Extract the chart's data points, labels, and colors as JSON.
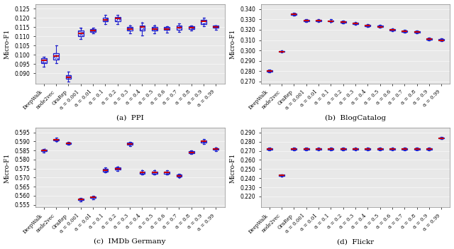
{
  "categories": [
    "DeepWalk",
    "node2vec",
    "GraRep",
    "α = 0.001",
    "α = 0.01",
    "α = 0.1",
    "α = 0.2",
    "α = 0.3",
    "α = 0.4",
    "α = 0.5",
    "α = 0.6",
    "α = 0.7",
    "α = 0.8",
    "α = 0.9",
    "α = 0.99"
  ],
  "ppi": {
    "title": "(a)  PPI",
    "ylabel": "Micro-F1",
    "ylim": [
      0.0845,
      0.1275
    ],
    "yticks": [
      0.09,
      0.095,
      0.1,
      0.105,
      0.11,
      0.115,
      0.12,
      0.125
    ],
    "medians": [
      0.097,
      0.0995,
      0.088,
      0.1115,
      0.113,
      0.119,
      0.1195,
      0.114,
      0.115,
      0.114,
      0.114,
      0.1145,
      0.1145,
      0.118,
      0.115
    ],
    "q1": [
      0.0955,
      0.0975,
      0.087,
      0.11,
      0.1125,
      0.118,
      0.118,
      0.113,
      0.113,
      0.113,
      0.1135,
      0.1135,
      0.114,
      0.1165,
      0.1145
    ],
    "q3": [
      0.098,
      0.101,
      0.089,
      0.113,
      0.114,
      0.12,
      0.1205,
      0.115,
      0.116,
      0.115,
      0.115,
      0.116,
      0.1155,
      0.119,
      0.116
    ],
    "whislo": [
      0.0935,
      0.0955,
      0.0855,
      0.1085,
      0.1115,
      0.1165,
      0.1165,
      0.1115,
      0.1105,
      0.1115,
      0.112,
      0.1125,
      0.113,
      0.1155,
      0.1135
    ],
    "whishi": [
      0.099,
      0.105,
      0.091,
      0.1145,
      0.1145,
      0.1215,
      0.1215,
      0.116,
      0.1175,
      0.116,
      0.1155,
      0.117,
      0.116,
      0.12,
      0.116
    ]
  },
  "blogcatalog": {
    "title": "(b)  BlogCatalog",
    "ylabel": "Micro-F1",
    "ylim": [
      0.268,
      0.345
    ],
    "yticks": [
      0.27,
      0.28,
      0.29,
      0.3,
      0.31,
      0.32,
      0.33,
      0.34
    ],
    "medians": [
      0.28,
      0.299,
      0.335,
      0.329,
      0.329,
      0.3285,
      0.3275,
      0.326,
      0.324,
      0.323,
      0.32,
      0.3185,
      0.318,
      0.311,
      0.31
    ],
    "q1": [
      0.2795,
      0.2988,
      0.3345,
      0.3285,
      0.3285,
      0.328,
      0.327,
      0.3255,
      0.3235,
      0.3225,
      0.3195,
      0.318,
      0.3175,
      0.3105,
      0.3095
    ],
    "q3": [
      0.2808,
      0.2995,
      0.3358,
      0.3297,
      0.3297,
      0.3292,
      0.3282,
      0.3268,
      0.3248,
      0.3238,
      0.3208,
      0.3192,
      0.3188,
      0.3118,
      0.3108
    ],
    "whislo": [
      0.279,
      0.2983,
      0.3338,
      0.3278,
      0.3278,
      0.3272,
      0.3262,
      0.3248,
      0.3228,
      0.3218,
      0.3188,
      0.3172,
      0.3168,
      0.3098,
      0.3088
    ],
    "whishi": [
      0.2812,
      0.2998,
      0.3365,
      0.3305,
      0.3305,
      0.33,
      0.329,
      0.3275,
      0.3255,
      0.3245,
      0.3215,
      0.3198,
      0.3195,
      0.3125,
      0.3115
    ]
  },
  "imdb": {
    "title": "(c)  IMDb Germany",
    "ylabel": "Micro-F1",
    "ylim": [
      0.5535,
      0.5975
    ],
    "yticks": [
      0.555,
      0.56,
      0.565,
      0.57,
      0.575,
      0.58,
      0.585,
      0.59,
      0.595
    ],
    "medians": [
      0.585,
      0.591,
      0.589,
      0.558,
      0.559,
      0.574,
      0.5748,
      0.5888,
      0.5728,
      0.5728,
      0.5728,
      0.571,
      0.584,
      0.59,
      0.5858
    ],
    "q1": [
      0.5845,
      0.5905,
      0.5887,
      0.5576,
      0.5586,
      0.5735,
      0.5743,
      0.5883,
      0.5723,
      0.5723,
      0.5723,
      0.5705,
      0.5837,
      0.5895,
      0.5853
    ],
    "q3": [
      0.5855,
      0.5915,
      0.5893,
      0.5584,
      0.5594,
      0.5748,
      0.5756,
      0.5893,
      0.5735,
      0.5735,
      0.5735,
      0.5718,
      0.5845,
      0.5907,
      0.5863
    ],
    "whislo": [
      0.584,
      0.59,
      0.5883,
      0.557,
      0.558,
      0.5728,
      0.5736,
      0.5876,
      0.5716,
      0.5716,
      0.5718,
      0.57,
      0.5832,
      0.5888,
      0.5848
    ],
    "whishi": [
      0.586,
      0.592,
      0.5897,
      0.5588,
      0.5598,
      0.5755,
      0.5762,
      0.5898,
      0.5742,
      0.5742,
      0.574,
      0.5722,
      0.585,
      0.5912,
      0.5868
    ]
  },
  "flickr": {
    "title": "(d)  Flickr",
    "ylabel": "Micro-F1",
    "ylim": [
      0.208,
      0.295
    ],
    "yticks": [
      0.22,
      0.23,
      0.24,
      0.25,
      0.26,
      0.27,
      0.28,
      0.29
    ],
    "medians": [
      0.272,
      0.243,
      0.272,
      0.272,
      0.272,
      0.272,
      0.272,
      0.272,
      0.272,
      0.272,
      0.272,
      0.272,
      0.272,
      0.272,
      0.284
    ],
    "q1": [
      0.2715,
      0.2425,
      0.2715,
      0.2715,
      0.2715,
      0.2715,
      0.2715,
      0.2715,
      0.2715,
      0.2715,
      0.2715,
      0.2715,
      0.2715,
      0.2715,
      0.2835
    ],
    "q3": [
      0.2728,
      0.2438,
      0.2728,
      0.2728,
      0.2728,
      0.2728,
      0.2728,
      0.2728,
      0.2728,
      0.2728,
      0.2728,
      0.2728,
      0.2728,
      0.2728,
      0.2848
    ],
    "whislo": [
      0.2708,
      0.2415,
      0.2708,
      0.2708,
      0.2708,
      0.2708,
      0.2708,
      0.2708,
      0.2708,
      0.2708,
      0.2708,
      0.2708,
      0.2708,
      0.2708,
      0.2828
    ],
    "whishi": [
      0.2735,
      0.2442,
      0.2735,
      0.2735,
      0.2735,
      0.2738,
      0.2738,
      0.2738,
      0.2738,
      0.2735,
      0.2735,
      0.2735,
      0.2735,
      0.2735,
      0.2852
    ]
  },
  "box_facecolor": "#2222cc",
  "median_color": "#cc0000",
  "bg_color": "#e8e8e8",
  "figsize": [
    6.4,
    3.51
  ],
  "dpi": 100
}
